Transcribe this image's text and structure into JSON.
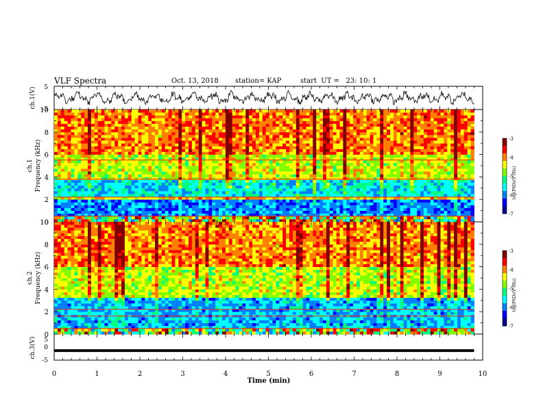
{
  "header": {
    "title": "VLF Spectra",
    "date": "Oct. 13, 2018",
    "station": "station= KAP",
    "start": "start  UT =   23: 10: 1"
  },
  "chart_data": [
    {
      "type": "line",
      "panel": "ch1-waveform",
      "ylabel": "ch.1(V)",
      "ylim": [
        -5,
        5
      ],
      "yticks": [
        "5",
        "-5"
      ],
      "xlim": [
        0,
        10
      ],
      "description_values": {
        "mean": 0,
        "amplitude_approx": 3
      }
    },
    {
      "type": "heatmap",
      "panel": "ch1-spectrogram",
      "ylabel_line1": "ch.1",
      "ylabel_line2": "Frequency (kHz)",
      "ylim": [
        0,
        10
      ],
      "yticks": [
        "0",
        "2",
        "4",
        "6",
        "8",
        "10"
      ],
      "xlim": [
        0,
        9.8
      ],
      "colorbar": {
        "label": "log(PSD)(V²/Hz)",
        "min": -7,
        "max": -3,
        "ticks": [
          "-3",
          "-4",
          "-5",
          "-6",
          "-7"
        ]
      },
      "bands_khz": [
        {
          "from": 0,
          "to": 0.6,
          "level": "mixed"
        },
        {
          "from": 0.6,
          "to": 2.0,
          "level": -6
        },
        {
          "from": 2.0,
          "to": 2.3,
          "level": -4.3
        },
        {
          "from": 2.3,
          "to": 3.7,
          "level": -5.6
        },
        {
          "from": 3.7,
          "to": 6.0,
          "level": -4.6
        },
        {
          "from": 6.0,
          "to": 10,
          "level": -4.0
        }
      ],
      "lines_khz": [
        0.5,
        2.2,
        3.8,
        5.5
      ]
    },
    {
      "type": "heatmap",
      "panel": "ch2-spectrogram",
      "ylabel_line1": "ch.2",
      "ylabel_line2": "Frequency (kHz)",
      "ylim": [
        0,
        10
      ],
      "yticks": [
        "0",
        "2",
        "4",
        "6",
        "8",
        "10"
      ],
      "xlim": [
        0,
        9.8
      ],
      "colorbar": {
        "label": "log(PSD)(V²/Hz)",
        "min": -7,
        "max": -3,
        "ticks": [
          "-3",
          "-4",
          "-5",
          "-6",
          "-7"
        ]
      },
      "bands_khz": [
        {
          "from": 0,
          "to": 0.6,
          "level": "mixed"
        },
        {
          "from": 0.6,
          "to": 3.2,
          "level": -5.8
        },
        {
          "from": 3.2,
          "to": 6.0,
          "level": -4.6
        },
        {
          "from": 6.0,
          "to": 10,
          "level": -4.0
        }
      ],
      "lines_khz": [
        0.5,
        1.6,
        2.2
      ]
    },
    {
      "type": "line",
      "panel": "ch3-waveform",
      "ylabel": "ch.3(V)",
      "ylim": [
        -5,
        5
      ],
      "yticks": [
        "5",
        "0",
        "-5"
      ],
      "xlim": [
        0,
        10
      ],
      "values_constant": -1.5
    }
  ],
  "xaxis": {
    "label": "Time (min)",
    "ticks": [
      "0",
      "1",
      "2",
      "3",
      "4",
      "5",
      "6",
      "7",
      "8",
      "9",
      "10"
    ]
  },
  "colors": {
    "scale": [
      "#00008f",
      "#0000ff",
      "#0080ff",
      "#00ffff",
      "#00ff80",
      "#80ff00",
      "#ffff00",
      "#ff8000",
      "#ff0000",
      "#800000"
    ]
  }
}
